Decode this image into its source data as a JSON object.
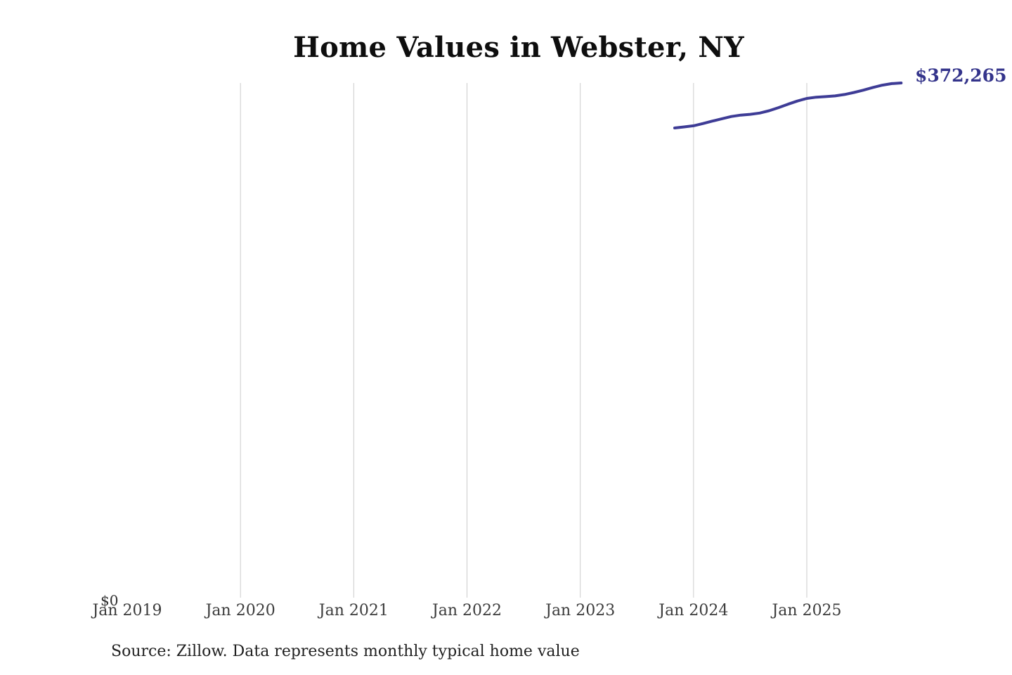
{
  "title": "Home Values in Webster, NY",
  "source_note": "Source: Zillow. Data represents monthly typical home value",
  "colors": {
    "background": "#ffffff",
    "line": "#3e3c96",
    "end_value_label": "#34348b",
    "gridline": "#cccccc",
    "axis_label": "#3c3c3c",
    "title": "#0e0e0e",
    "source": "#1f1f1f",
    "y_zero_label": "#2e2e2e"
  },
  "chart_data": {
    "type": "line",
    "title": "Home Values in Webster, NY",
    "end_value_label": "$372,265",
    "legend": "none",
    "grid": "vertical-only",
    "y_axis": {
      "zero_label": "$0",
      "min": 0,
      "max": 372265
    },
    "x_ticks": [
      {
        "label": "Jan 2019",
        "year": 2019,
        "gridline": false
      },
      {
        "label": "Jan 2020",
        "year": 2020,
        "gridline": true
      },
      {
        "label": "Jan 2021",
        "year": 2021,
        "gridline": true
      },
      {
        "label": "Jan 2022",
        "year": 2022,
        "gridline": true
      },
      {
        "label": "Jan 2023",
        "year": 2023,
        "gridline": true
      },
      {
        "label": "Jan 2024",
        "year": 2024,
        "gridline": true
      },
      {
        "label": "Jan 2025",
        "year": 2025,
        "gridline": true
      }
    ],
    "series": [
      {
        "name": "Monthly typical home value",
        "unit": "USD",
        "points": [
          {
            "month": "2023-11",
            "value": 339700
          },
          {
            "month": "2023-12",
            "value": 340500
          },
          {
            "month": "2024-01",
            "value": 341300
          },
          {
            "month": "2024-02",
            "value": 342900
          },
          {
            "month": "2024-03",
            "value": 344700
          },
          {
            "month": "2024-04",
            "value": 346400
          },
          {
            "month": "2024-05",
            "value": 348000
          },
          {
            "month": "2024-06",
            "value": 349000
          },
          {
            "month": "2024-07",
            "value": 349600
          },
          {
            "month": "2024-08",
            "value": 350500
          },
          {
            "month": "2024-09",
            "value": 352200
          },
          {
            "month": "2024-10",
            "value": 354400
          },
          {
            "month": "2024-11",
            "value": 356900
          },
          {
            "month": "2024-12",
            "value": 359200
          },
          {
            "month": "2025-01",
            "value": 361100
          },
          {
            "month": "2025-02",
            "value": 362000
          },
          {
            "month": "2025-03",
            "value": 362400
          },
          {
            "month": "2025-04",
            "value": 362900
          },
          {
            "month": "2025-05",
            "value": 363900
          },
          {
            "month": "2025-06",
            "value": 365400
          },
          {
            "month": "2025-07",
            "value": 367100
          },
          {
            "month": "2025-08",
            "value": 369000
          },
          {
            "month": "2025-09",
            "value": 370700
          },
          {
            "month": "2025-10",
            "value": 371800
          },
          {
            "month": "2025-11",
            "value": 372265
          }
        ]
      }
    ]
  }
}
